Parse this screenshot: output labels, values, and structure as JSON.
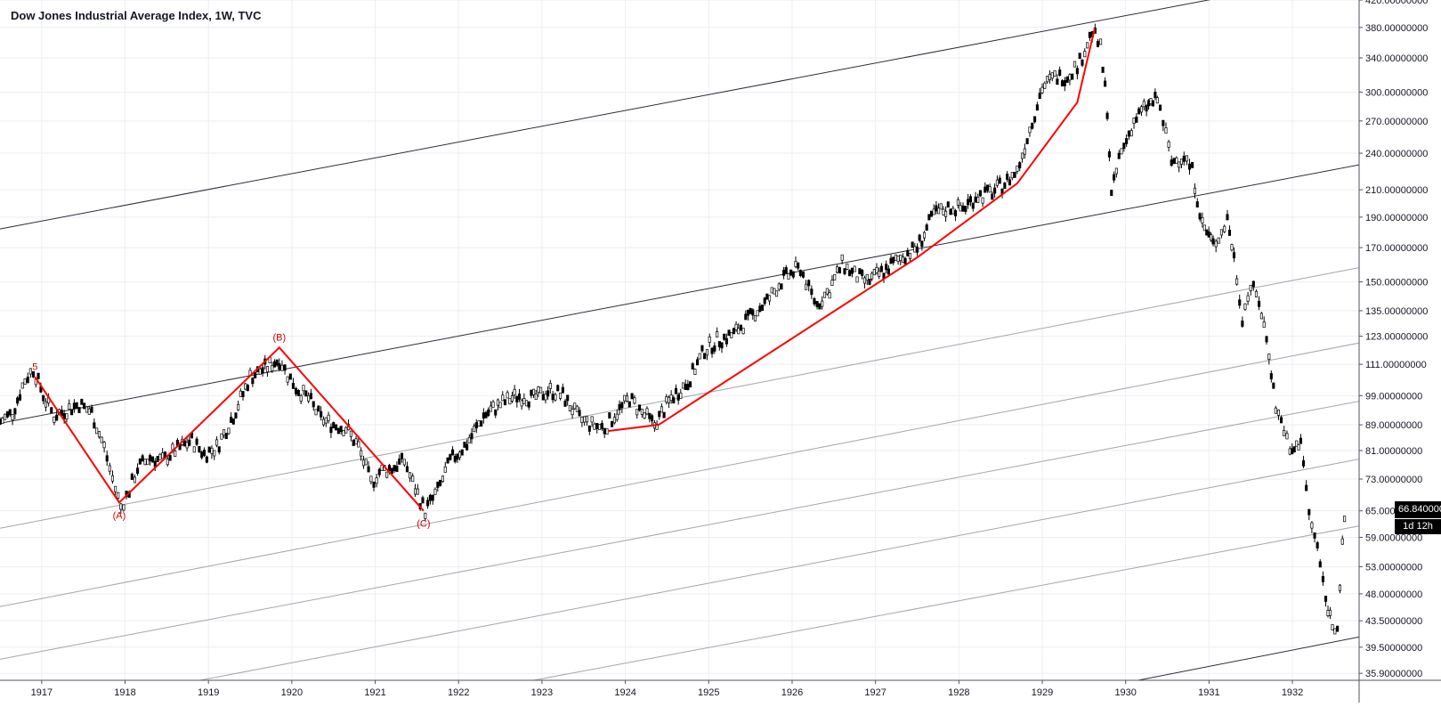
{
  "chart_data": {
    "type": "candlestick",
    "title": "Dow Jones Industrial Average Index, 1W, TVC",
    "scale": "log",
    "ylim": [
      35,
      420
    ],
    "xlim": [
      1916.5,
      1932.8
    ],
    "grid": true,
    "y_ticks": [
      "420.00000000",
      "380.00000000",
      "340.00000000",
      "300.00000000",
      "270.00000000",
      "240.00000000",
      "210.00000000",
      "190.00000000",
      "170.00000000",
      "150.00000000",
      "135.00000000",
      "123.00000000",
      "111.00000000",
      "99.00000000",
      "89.00000000",
      "81.00000000",
      "73.00000000",
      "65.00000000",
      "59.00000000",
      "53.00000000",
      "48.00000000",
      "43.50000000",
      "39.50000000",
      "35.90000000"
    ],
    "x_ticks": [
      "1917",
      "1918",
      "1919",
      "1920",
      "1921",
      "1922",
      "1923",
      "1924",
      "1925",
      "1926",
      "1927",
      "1928",
      "1929",
      "1930",
      "1931",
      "1932"
    ],
    "last_price": "66.84000000",
    "countdown": "1d 12h",
    "price_path": [
      [
        1916.5,
        90
      ],
      [
        1916.65,
        93
      ],
      [
        1916.8,
        105
      ],
      [
        1916.9,
        109
      ],
      [
        1917.05,
        97
      ],
      [
        1917.15,
        92
      ],
      [
        1917.3,
        94
      ],
      [
        1917.45,
        96
      ],
      [
        1917.6,
        93
      ],
      [
        1917.75,
        82
      ],
      [
        1917.85,
        73
      ],
      [
        1917.95,
        66
      ],
      [
        1918.05,
        70
      ],
      [
        1918.15,
        76
      ],
      [
        1918.3,
        79
      ],
      [
        1918.45,
        78
      ],
      [
        1918.6,
        81
      ],
      [
        1918.8,
        84
      ],
      [
        1918.95,
        80
      ],
      [
        1919.1,
        82
      ],
      [
        1919.3,
        92
      ],
      [
        1919.5,
        106
      ],
      [
        1919.65,
        109
      ],
      [
        1919.85,
        113
      ],
      [
        1919.95,
        107
      ],
      [
        1920.05,
        102
      ],
      [
        1920.2,
        98
      ],
      [
        1920.35,
        91
      ],
      [
        1920.5,
        89
      ],
      [
        1920.65,
        88
      ],
      [
        1920.8,
        82
      ],
      [
        1920.95,
        72
      ],
      [
        1921.05,
        75
      ],
      [
        1921.2,
        76
      ],
      [
        1921.35,
        78
      ],
      [
        1921.45,
        72
      ],
      [
        1921.6,
        65
      ],
      [
        1921.75,
        70
      ],
      [
        1921.9,
        78
      ],
      [
        1922.1,
        83
      ],
      [
        1922.3,
        92
      ],
      [
        1922.5,
        96
      ],
      [
        1922.7,
        99
      ],
      [
        1922.9,
        98
      ],
      [
        1923.1,
        101
      ],
      [
        1923.25,
        99
      ],
      [
        1923.45,
        91
      ],
      [
        1923.6,
        89
      ],
      [
        1923.75,
        88
      ],
      [
        1923.9,
        93
      ],
      [
        1924.05,
        98
      ],
      [
        1924.2,
        93
      ],
      [
        1924.35,
        89
      ],
      [
        1924.55,
        98
      ],
      [
        1924.75,
        104
      ],
      [
        1924.95,
        117
      ],
      [
        1925.1,
        121
      ],
      [
        1925.3,
        124
      ],
      [
        1925.5,
        132
      ],
      [
        1925.7,
        140
      ],
      [
        1925.9,
        152
      ],
      [
        1926.1,
        158
      ],
      [
        1926.2,
        146
      ],
      [
        1926.3,
        138
      ],
      [
        1926.45,
        146
      ],
      [
        1926.6,
        160
      ],
      [
        1926.75,
        154
      ],
      [
        1926.9,
        150
      ],
      [
        1927.1,
        156
      ],
      [
        1927.3,
        164
      ],
      [
        1927.5,
        170
      ],
      [
        1927.7,
        192
      ],
      [
        1927.9,
        197
      ],
      [
        1928.05,
        196
      ],
      [
        1928.2,
        205
      ],
      [
        1928.4,
        208
      ],
      [
        1928.55,
        215
      ],
      [
        1928.7,
        225
      ],
      [
        1928.85,
        262
      ],
      [
        1929.0,
        305
      ],
      [
        1929.15,
        317
      ],
      [
        1929.3,
        318
      ],
      [
        1929.45,
        335
      ],
      [
        1929.6,
        375
      ],
      [
        1929.7,
        352
      ],
      [
        1929.78,
        282
      ],
      [
        1929.83,
        205
      ],
      [
        1929.92,
        235
      ],
      [
        1930.1,
        270
      ],
      [
        1930.25,
        285
      ],
      [
        1930.38,
        292
      ],
      [
        1930.45,
        270
      ],
      [
        1930.55,
        232
      ],
      [
        1930.7,
        238
      ],
      [
        1930.8,
        225
      ],
      [
        1930.92,
        185
      ],
      [
        1931.05,
        172
      ],
      [
        1931.15,
        180
      ],
      [
        1931.22,
        189
      ],
      [
        1931.3,
        164
      ],
      [
        1931.4,
        132
      ],
      [
        1931.5,
        148
      ],
      [
        1931.6,
        140
      ],
      [
        1931.72,
        116
      ],
      [
        1931.8,
        95
      ],
      [
        1931.9,
        88
      ],
      [
        1931.97,
        80
      ],
      [
        1932.05,
        82
      ],
      [
        1932.1,
        85
      ],
      [
        1932.2,
        64
      ],
      [
        1932.3,
        57
      ],
      [
        1932.4,
        47
      ],
      [
        1932.48,
        43
      ],
      [
        1932.54,
        42.8
      ],
      [
        1932.6,
        57
      ],
      [
        1932.65,
        66.84
      ]
    ],
    "wave_points": [
      {
        "x": 1916.92,
        "y": 106,
        "label": "5"
      },
      {
        "x": 1917.93,
        "y": 67,
        "label": "(A)"
      },
      {
        "x": 1919.85,
        "y": 118,
        "label": "(B)"
      },
      {
        "x": 1921.58,
        "y": 65,
        "label": "(C)"
      },
      {
        "x": 1923.8,
        "y": 87
      },
      {
        "x": 1924.4,
        "y": 89
      },
      {
        "x": 1927.5,
        "y": 164
      },
      {
        "x": 1928.7,
        "y": 215
      },
      {
        "x": 1929.42,
        "y": 289
      },
      {
        "x": 1929.63,
        "y": 379
      }
    ],
    "channel_lines": [
      {
        "kind": "dark",
        "p1": [
          1916.5,
          182
        ],
        "p2": [
          1931.6,
          435
        ]
      },
      {
        "kind": "dark",
        "p1": [
          1916.5,
          89.5
        ],
        "p2": [
          1932.8,
          230
        ]
      },
      {
        "kind": "light",
        "p1": [
          1916.5,
          61
        ],
        "p2": [
          1932.8,
          158
        ]
      },
      {
        "kind": "light",
        "p1": [
          1916.5,
          45.8
        ],
        "p2": [
          1932.8,
          120
        ]
      },
      {
        "kind": "light",
        "p1": [
          1916.5,
          37.8
        ],
        "p2": [
          1932.8,
          97
        ]
      },
      {
        "kind": "light",
        "p1": [
          1918.9,
          35
        ],
        "p2": [
          1932.8,
          78.5
        ]
      },
      {
        "kind": "light",
        "p1": [
          1922.9,
          35
        ],
        "p2": [
          1932.8,
          61.5
        ]
      },
      {
        "kind": "dark",
        "p1": [
          1930.15,
          35
        ],
        "p2": [
          1932.8,
          41
        ]
      }
    ]
  }
}
